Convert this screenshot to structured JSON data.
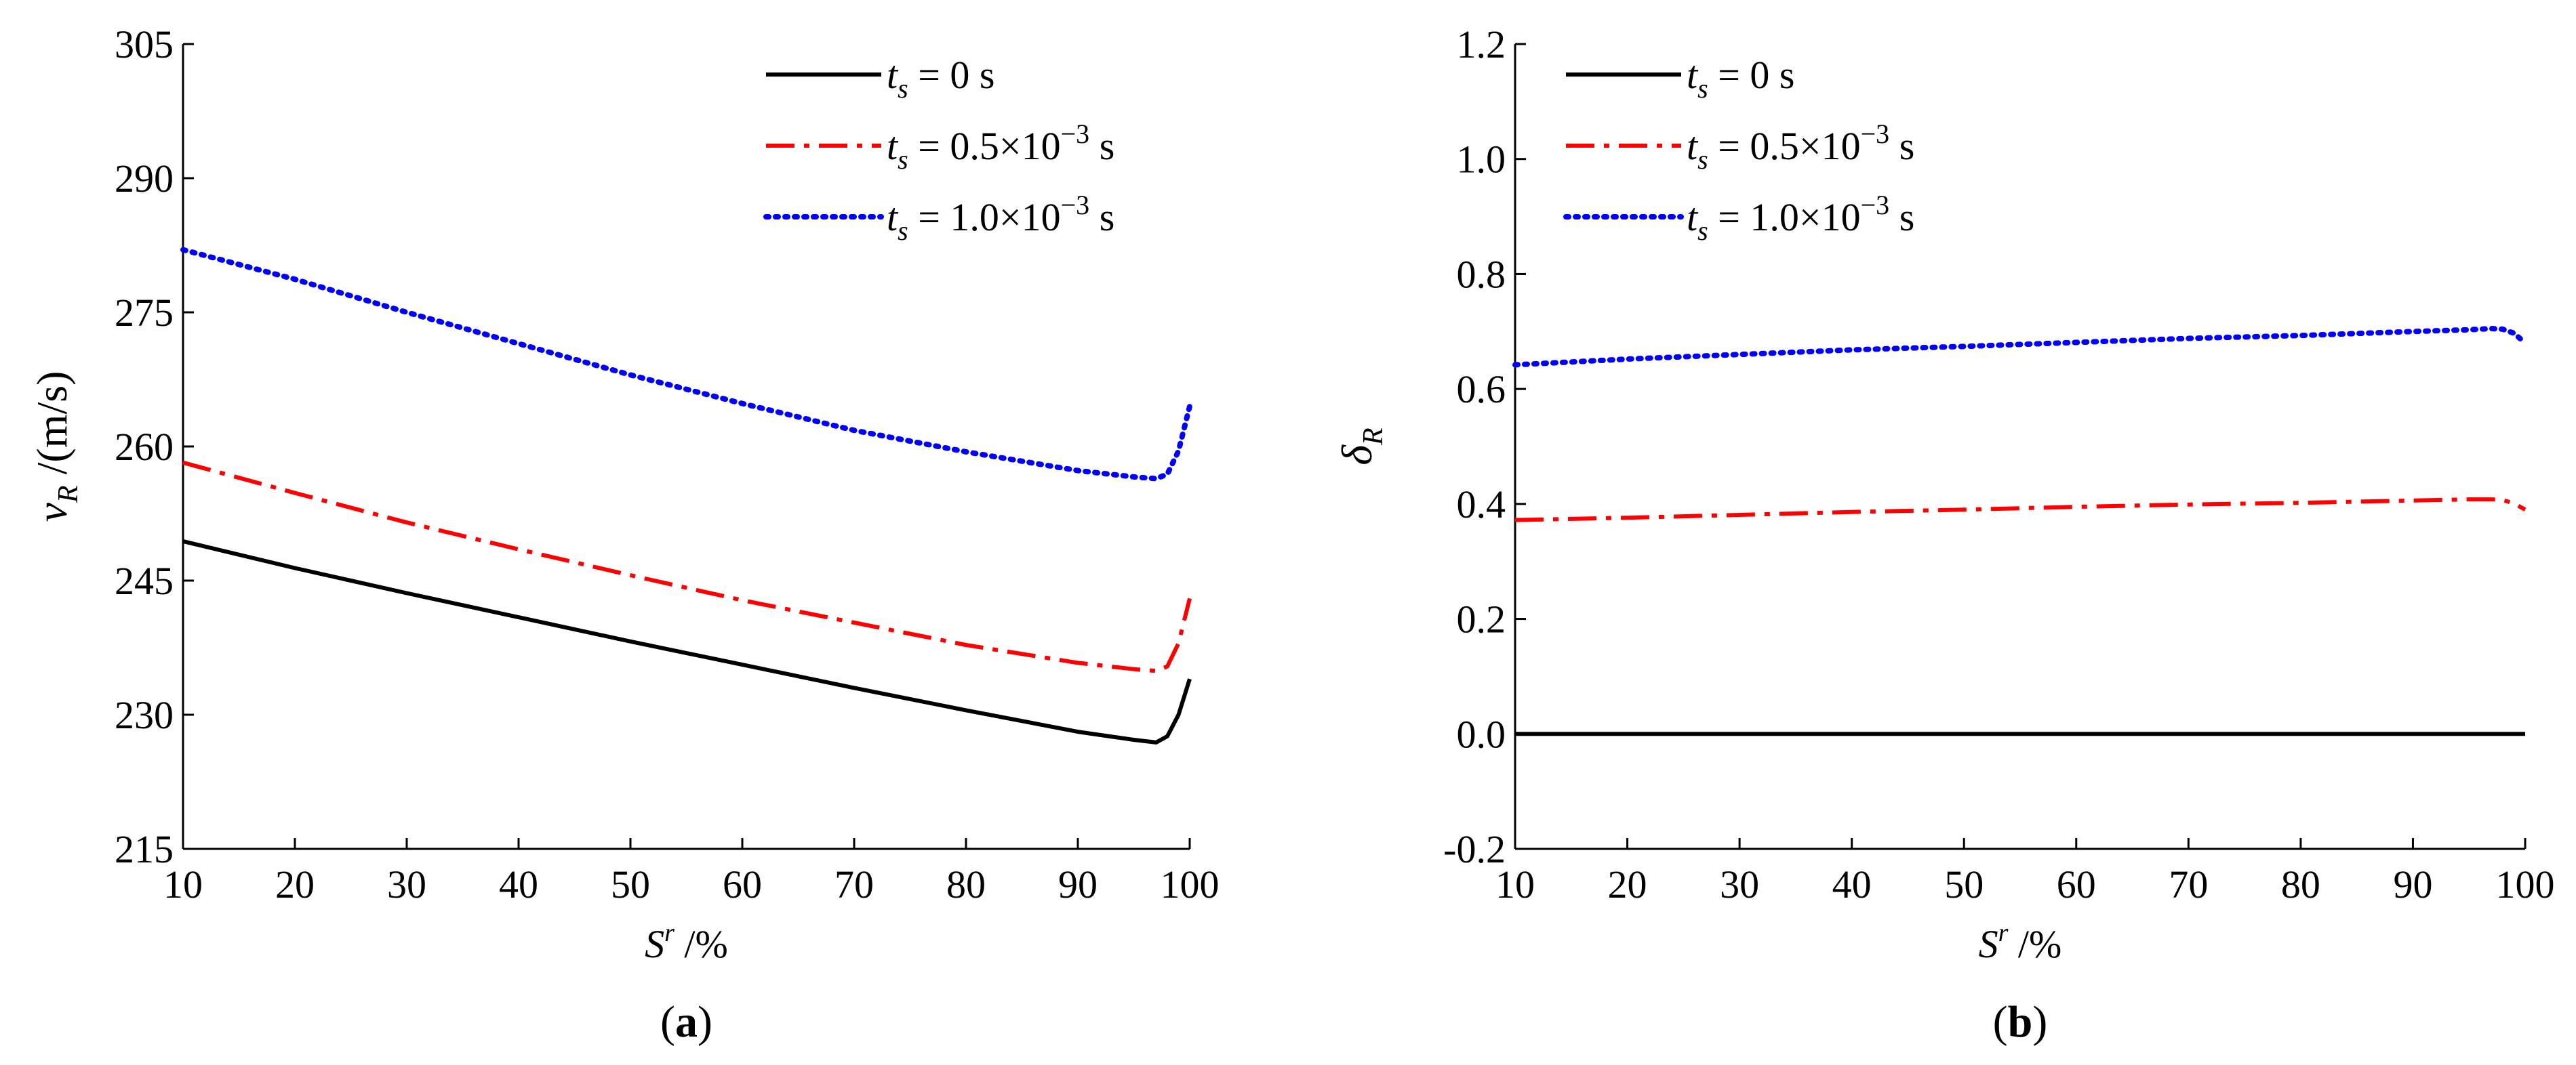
{
  "chart_data": [
    {
      "type": "line",
      "panel_label": "(a)",
      "xlabel": "S^r /%",
      "ylabel": "v_R /(m/s)",
      "xlim": [
        10,
        100
      ],
      "ylim": [
        215,
        305
      ],
      "xticks": [
        10,
        20,
        30,
        40,
        50,
        60,
        70,
        80,
        90,
        100
      ],
      "yticks": [
        215,
        230,
        245,
        260,
        275,
        290,
        305
      ],
      "ytick_labels": [
        "215",
        "230",
        "245",
        "260",
        "275",
        "290",
        "305"
      ],
      "legend_position": "top-right",
      "series": [
        {
          "name": "t_s = 0 s",
          "legend": {
            "pre": " = 0 s",
            "exp": "",
            "post": ""
          },
          "color": "#000000",
          "style": "solid",
          "x": [
            10,
            20,
            30,
            40,
            50,
            60,
            70,
            80,
            90,
            95,
            97,
            98,
            99,
            100
          ],
          "y": [
            249.4,
            246.4,
            243.6,
            240.9,
            238.2,
            235.6,
            233.0,
            230.5,
            228.1,
            227.2,
            226.9,
            227.6,
            230.0,
            234.0
          ]
        },
        {
          "name": "t_s = 0.5×10^-3 s",
          "legend": {
            "pre": " = 0.5×10",
            "exp": "−3",
            "post": " s"
          },
          "color": "#ff0000",
          "style": "dashdot",
          "x": [
            10,
            20,
            30,
            40,
            50,
            60,
            70,
            80,
            90,
            95,
            97,
            98,
            99,
            100
          ],
          "y": [
            258.2,
            254.8,
            251.5,
            248.5,
            245.6,
            242.8,
            240.3,
            237.8,
            235.8,
            235.1,
            234.9,
            235.4,
            238.0,
            243.0
          ]
        },
        {
          "name": "t_s = 1.0×10^-3 s",
          "legend": {
            "pre": " = 1.0×10",
            "exp": "−3",
            "post": " s"
          },
          "color": "#0000ff",
          "style": "dotted",
          "x": [
            10,
            20,
            30,
            40,
            50,
            60,
            70,
            80,
            90,
            95,
            97,
            98,
            99,
            100
          ],
          "y": [
            282.0,
            278.7,
            275.0,
            271.5,
            268.0,
            264.8,
            261.8,
            259.4,
            257.3,
            256.6,
            256.4,
            256.9,
            259.5,
            264.5
          ]
        }
      ]
    },
    {
      "type": "line",
      "panel_label": "(b)",
      "xlabel": "S^r /%",
      "ylabel": "δ_R",
      "xlim": [
        10,
        100
      ],
      "ylim": [
        -0.2,
        1.2
      ],
      "xticks": [
        10,
        20,
        30,
        40,
        50,
        60,
        70,
        80,
        90,
        100
      ],
      "yticks": [
        -0.2,
        0.0,
        0.2,
        0.4,
        0.6,
        0.8,
        1.0,
        1.2
      ],
      "ytick_labels": [
        "-0.2",
        "0.0",
        "0.2",
        "0.4",
        "0.6",
        "0.8",
        "1.0",
        "1.2"
      ],
      "legend_position": "top-left",
      "series": [
        {
          "name": "t_s = 0 s",
          "legend": {
            "pre": " = 0 s",
            "exp": "",
            "post": ""
          },
          "color": "#000000",
          "style": "solid",
          "x": [
            10,
            100
          ],
          "y": [
            0.0,
            0.0
          ]
        },
        {
          "name": "t_s = 0.5×10^-3 s",
          "legend": {
            "pre": " = 0.5×10",
            "exp": "−3",
            "post": " s"
          },
          "color": "#ff0000",
          "style": "dashdot",
          "x": [
            10,
            20,
            30,
            40,
            50,
            60,
            70,
            80,
            90,
            95,
            97,
            98,
            99,
            100
          ],
          "y": [
            0.372,
            0.376,
            0.381,
            0.386,
            0.39,
            0.395,
            0.399,
            0.402,
            0.406,
            0.408,
            0.408,
            0.407,
            0.401,
            0.39
          ]
        },
        {
          "name": "t_s = 1.0×10^-3 s",
          "legend": {
            "pre": " = 1.0×10",
            "exp": "−3",
            "post": " s"
          },
          "color": "#0000ff",
          "style": "dotted",
          "x": [
            10,
            20,
            30,
            40,
            50,
            60,
            70,
            80,
            90,
            95,
            97,
            98,
            99,
            100
          ],
          "y": [
            0.642,
            0.652,
            0.66,
            0.668,
            0.674,
            0.681,
            0.688,
            0.693,
            0.7,
            0.703,
            0.705,
            0.704,
            0.697,
            0.68
          ]
        }
      ]
    }
  ]
}
